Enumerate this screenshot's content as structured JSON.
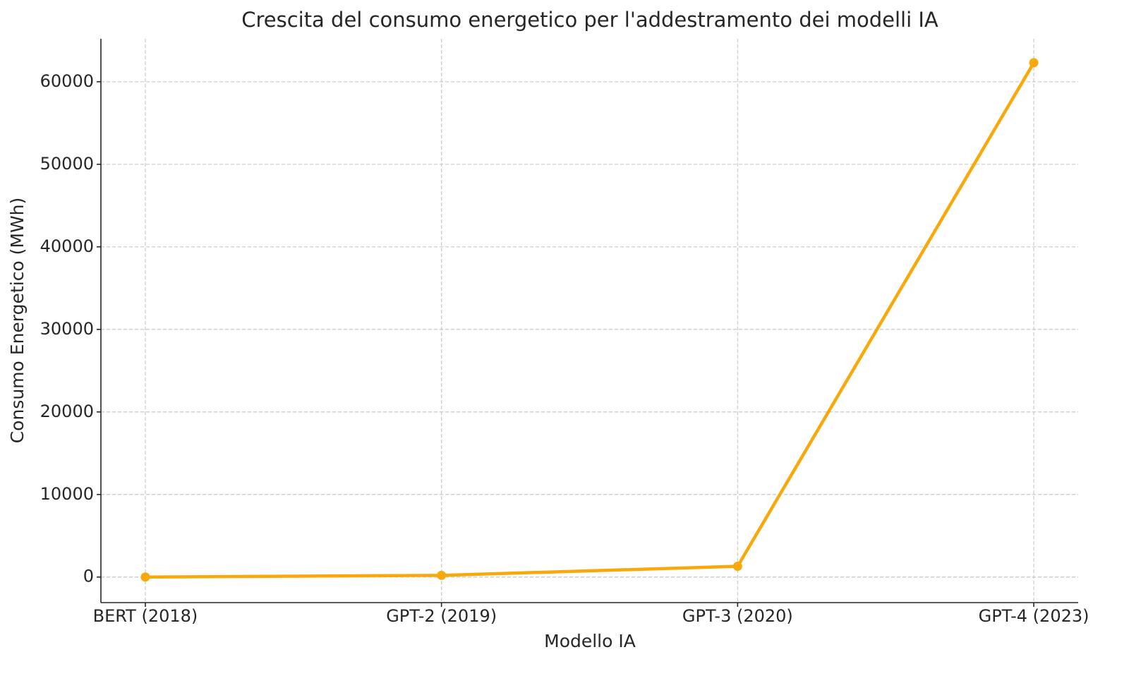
{
  "chart_data": {
    "type": "line",
    "title": "Crescita del consumo energetico per l'addestramento dei modelli IA",
    "x_label": "Modello IA",
    "y_label": "Consumo Energetico (MWh)",
    "categories": [
      "BERT (2018)",
      "GPT-2 (2019)",
      "GPT-3 (2020)",
      "GPT-4 (2023)"
    ],
    "series": [
      {
        "name": "Consumo Energetico",
        "color": "#f9a80c",
        "values": [
          0,
          200,
          1300,
          62300
        ]
      }
    ],
    "ylim": [
      -3100,
      65200
    ],
    "yticks": [
      0,
      10000,
      20000,
      30000,
      40000,
      50000,
      60000
    ],
    "grid": true
  }
}
